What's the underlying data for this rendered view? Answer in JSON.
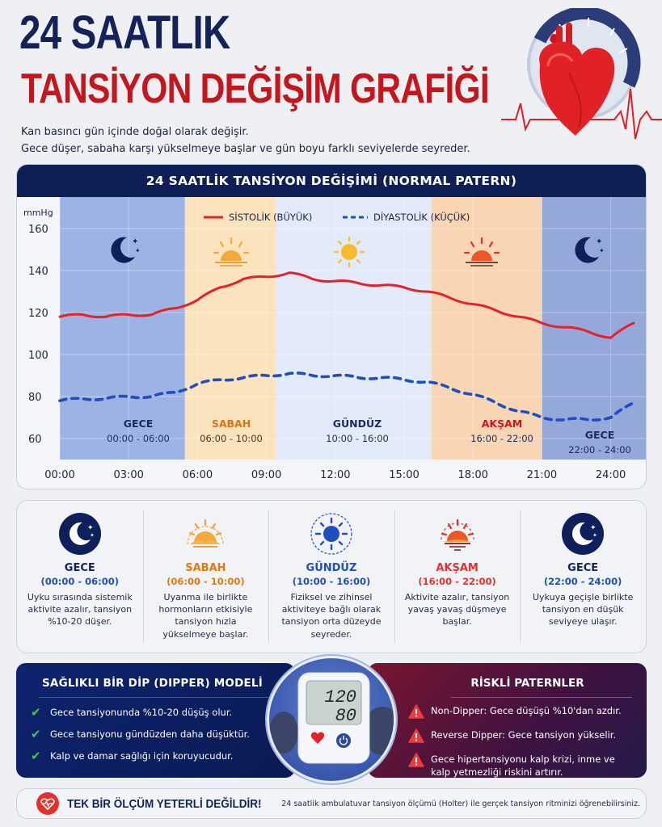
{
  "header": {
    "title_line1": "24 SAATLIK",
    "title_line2": "TANSİYON DEĞİŞİM GRAFİĞİ",
    "subtitle_line1": "Kan basıncı gün içinde doğal olarak değişir.",
    "subtitle_line2": "Gece düşer, sabaha karşı yükselmeye başlar ve gün boyu farklı seviyelerde seyreder.",
    "hero_icons": [
      "heart-icon",
      "gauge-icon",
      "ecg-line-icon"
    ]
  },
  "chart": {
    "title": "24 SAATLİK TANSİYON DEĞİŞİMİ (NORMAL PATERN)",
    "unit": "mmHg",
    "legend_systolic": "SİSTOLİK (BÜYÜK)",
    "legend_diastolic": "DİYASTOLİK (KÜÇÜK)",
    "band_labels": [
      {
        "name": "GECE",
        "time": "00:00 - 06:00",
        "color": "#1b2a5e",
        "time_color": "#1b2a5e"
      },
      {
        "name": "SABAH",
        "time": "06:00 - 10:00",
        "color": "#d9731a",
        "time_color": "#5a2a1a"
      },
      {
        "name": "GÜNDÜZ",
        "time": "10:00 - 16:00",
        "color": "#1b2a5e",
        "time_color": "#1b2a5e"
      },
      {
        "name": "AKŞAM",
        "time": "16:00 - 22:00",
        "color": "#d0141c",
        "time_color": "#1b2a5e"
      },
      {
        "name": "GECE",
        "time": "22:00 - 24:00",
        "color": "#1b2a5e",
        "time_color": "#1b2a5e"
      }
    ]
  },
  "chart_data": {
    "type": "line",
    "title": "24 SAATLİK TANSİYON DEĞİŞİMİ (NORMAL PATERN)",
    "xlabel": "",
    "ylabel": "mmHg",
    "ylim": [
      55,
      165
    ],
    "yticks": [
      60,
      80,
      100,
      120,
      140,
      160
    ],
    "xticks": [
      "00:00",
      "03:00",
      "06:00",
      "09:00",
      "12:00",
      "15:00",
      "18:00",
      "21:00",
      "24:00"
    ],
    "grid": true,
    "legend_position": "top",
    "x": [
      0,
      1,
      2,
      3,
      4,
      5,
      6,
      7,
      8,
      9,
      10,
      11,
      12,
      13,
      14,
      15,
      16,
      17,
      18,
      19,
      20,
      21,
      22,
      23,
      24,
      25
    ],
    "series": [
      {
        "name": "SİSTOLİK (BÜYÜK)",
        "style": "solid",
        "color": "#e8202a",
        "values": [
          118,
          119,
          118,
          119,
          119,
          122,
          126,
          132,
          136,
          137,
          139,
          136,
          135,
          134,
          133,
          132,
          130,
          127,
          124,
          121,
          118,
          115,
          113,
          111,
          108,
          115
        ]
      },
      {
        "name": "DİYASTOLİK (KÜÇÜK)",
        "style": "dashed",
        "color": "#1f4fbf",
        "values": [
          78,
          79,
          79,
          80,
          80,
          82,
          86,
          88,
          89,
          90,
          91,
          90,
          90,
          89,
          89,
          88,
          87,
          84,
          81,
          77,
          73,
          70,
          69,
          69,
          70,
          77
        ]
      }
    ],
    "bands": [
      {
        "label": "GECE",
        "range": "00:00 - 06:00",
        "color": "#9db3e3"
      },
      {
        "label": "SABAH",
        "range": "06:00 - 10:00",
        "color": "#fbe3bd"
      },
      {
        "label": "GÜNDÜZ",
        "range": "10:00 - 16:00",
        "color": "#e3ebfa"
      },
      {
        "label": "AKŞAM",
        "range": "16:00 - 22:00",
        "color": "#f8d5b3"
      },
      {
        "label": "GECE",
        "range": "22:00 - 24:00",
        "color": "#94a9d9"
      }
    ]
  },
  "periods": [
    {
      "icon": "moon-stars-icon",
      "name": "GECE",
      "time": "(00:00 - 06:00)",
      "desc": "Uyku sırasında sistemik aktivite azalır, tansiyon %10-20 düşer.",
      "name_color": "#13235a",
      "time_color": "#1f4fbf"
    },
    {
      "icon": "sunrise-icon",
      "name": "SABAH",
      "time": "(06:00 - 10:00)",
      "desc": "Uyanma ile birlikte hormonların etkisiyle tansiyon hızla yükselmeye başlar.",
      "name_color": "#e27a13",
      "time_color": "#e27a13"
    },
    {
      "icon": "sun-icon",
      "name": "GÜNDÜZ",
      "time": "(10:00 - 16:00)",
      "desc": "Fiziksel ve zihinsel aktiviteye bağlı olarak tansiyon orta düzeyde seyreder.",
      "name_color": "#1f4fbf",
      "time_color": "#1f4fbf"
    },
    {
      "icon": "sunset-icon",
      "name": "AKŞAM",
      "time": "(16:00 - 22:00)",
      "desc": "Aktivite azalır, tansiyon yavaş yavaş düşmeye başlar.",
      "name_color": "#e8302a",
      "time_color": "#e8302a"
    },
    {
      "icon": "moon-stars-icon",
      "name": "GECE",
      "time": "(22:00 - 24:00)",
      "desc": "Uykuya geçişle birlikte tansiyon en düşük seviyeye ulaşır.",
      "name_color": "#13235a",
      "time_color": "#1f4fbf"
    }
  ],
  "dipper": {
    "title": "SAĞLIKLI BİR DİP (DIPPER) MODELİ",
    "items": [
      "Gece tansiyonunda %10-20 düşüş olur.",
      "Gece tansiyonu gündüzden daha düşüktür.",
      "Kalp ve damar sağlığı için koruyucudur."
    ]
  },
  "device": {
    "systolic": "120",
    "diastolic": "80"
  },
  "risky": {
    "title": "RİSKLİ PATERNLER",
    "items": [
      "Non-Dipper: Gece düşüşü %10'dan azdır.",
      "Reverse Dipper: Gece tansiyon yükselir.",
      "Gece hipertansiyonu kalp krizi, inme ve kalp yetmezliği riskini artırır."
    ]
  },
  "footer": {
    "title": "TEK BİR ÖLÇÜM YETERLİ DEĞİLDİR!",
    "text": "24 saatlik ambulatuvar tansiyon ölçümü (Holter) ile gerçek tansiyon ritminizi öğrenebilirsiniz."
  }
}
